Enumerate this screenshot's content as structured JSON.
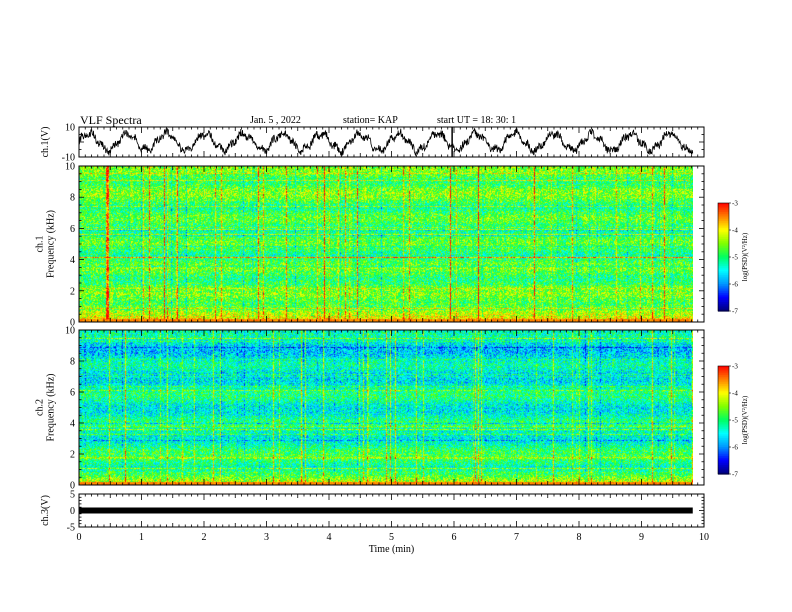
{
  "header": {
    "title": "VLF Spectra",
    "date": "Jan. 5 , 2022",
    "station": "station= KAP",
    "start": "start UT = 18: 30: 1"
  },
  "chart_data": [
    {
      "type": "line",
      "name": "ch1-waveform",
      "ylabel": "ch.1(V)",
      "ylim": [
        -10,
        10
      ],
      "yticks": [
        "10",
        "-10"
      ],
      "xlim": [
        0,
        10
      ],
      "x_end": 9.82,
      "approx_period_min": 0.62,
      "approx_amplitude_v": 6
    },
    {
      "type": "heatmap",
      "name": "ch1-spectrogram",
      "ylabel": "ch.1\nFrequency (kHz)",
      "ylim": [
        0,
        10
      ],
      "yticks": [
        "0",
        "2",
        "4",
        "6",
        "8",
        "10"
      ],
      "xlim": [
        0,
        10
      ],
      "x_end": 9.82,
      "colorbar": {
        "label": "log(PSD)(V²/Hz)",
        "range": [
          -7,
          -3
        ],
        "ticks": [
          "-3",
          "-4",
          "-5",
          "-6",
          "-7"
        ]
      }
    },
    {
      "type": "heatmap",
      "name": "ch2-spectrogram",
      "ylabel": "ch.2\nFrequency (kHz)",
      "ylim": [
        0,
        10
      ],
      "yticks": [
        "0",
        "2",
        "4",
        "6",
        "8",
        "10"
      ],
      "xlim": [
        0,
        10
      ],
      "x_end": 9.82,
      "colorbar": {
        "label": "log(PSD)(V²/Hz)",
        "range": [
          -7,
          -3
        ],
        "ticks": [
          "-3",
          "-4",
          "-5",
          "-6",
          "-7"
        ]
      }
    },
    {
      "type": "line",
      "name": "ch3-waveform",
      "ylabel": "ch.3(V)",
      "ylim": [
        -5,
        5
      ],
      "yticks": [
        "5",
        "0",
        "-5"
      ],
      "xlim": [
        0,
        10
      ],
      "x_end": 9.82,
      "level_v": 0
    }
  ],
  "xaxis": {
    "label": "Time (min)",
    "ticks": [
      "0",
      "1",
      "2",
      "3",
      "4",
      "5",
      "6",
      "7",
      "8",
      "9",
      "10"
    ]
  },
  "colors": {
    "colormap": [
      "#000078",
      "#0000ff",
      "#0096ff",
      "#00ffff",
      "#00ff60",
      "#80ff00",
      "#ffff00",
      "#ff8000",
      "#ff0000"
    ]
  }
}
